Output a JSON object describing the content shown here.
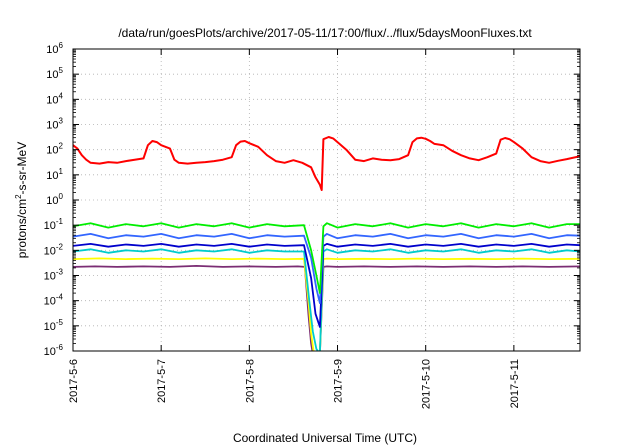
{
  "chart_data": {
    "type": "line",
    "title": "/data/run/goesPlots/archive/2017-05-11/17:00/flux/../flux/5daysMoonFluxes.txt",
    "xlabel": "Coordinated Universal Time (UTC)",
    "ylabel": {
      "base": "protons/cm",
      "sup": "2",
      "rest": "-s-sr-MeV"
    },
    "x_unit": "days since 2017-05-06 00:00 UTC",
    "xlim": [
      0,
      5.75
    ],
    "ylim": [
      1e-06,
      1000000.0
    ],
    "yscale": "log",
    "grid": true,
    "x_ticks": [
      {
        "value": 0,
        "label": "2017-5-6"
      },
      {
        "value": 1,
        "label": "2017-5-7"
      },
      {
        "value": 2,
        "label": "2017-5-8"
      },
      {
        "value": 3,
        "label": "2017-5-9"
      },
      {
        "value": 4,
        "label": "2017-5-10"
      },
      {
        "value": 5,
        "label": "2017-5-11"
      }
    ],
    "y_ticks": [
      {
        "exp": -6,
        "label": "10",
        "sup": "-6"
      },
      {
        "exp": -5,
        "label": "10",
        "sup": "-5"
      },
      {
        "exp": -4,
        "label": "10",
        "sup": "-4"
      },
      {
        "exp": -3,
        "label": "10",
        "sup": "-3"
      },
      {
        "exp": -2,
        "label": "10",
        "sup": "-2"
      },
      {
        "exp": -1,
        "label": "10",
        "sup": "-1"
      },
      {
        "exp": 0,
        "label": "10",
        "sup": "0"
      },
      {
        "exp": 1,
        "label": "10",
        "sup": "1"
      },
      {
        "exp": 2,
        "label": "10",
        "sup": "2"
      },
      {
        "exp": 3,
        "label": "10",
        "sup": "3"
      },
      {
        "exp": 4,
        "label": "10",
        "sup": "4"
      },
      {
        "exp": 5,
        "label": "10",
        "sup": "5"
      },
      {
        "exp": 6,
        "label": "10",
        "sup": "6"
      }
    ],
    "series": [
      {
        "color": "#7b2d74",
        "x": [
          0.0,
          0.25,
          0.5,
          0.8,
          1.1,
          1.4,
          1.7,
          2.0,
          2.3,
          2.55,
          2.63,
          2.67,
          2.7,
          2.72,
          2.74,
          2.78,
          2.8,
          2.84,
          2.88,
          3.0,
          3.3,
          3.6,
          3.9,
          4.2,
          4.5,
          4.8,
          5.1,
          5.4,
          5.75
        ],
        "y": [
          0.0022,
          0.0023,
          0.0022,
          0.0023,
          0.0022,
          0.0024,
          0.0022,
          0.0023,
          0.0022,
          0.0023,
          0.0022,
          3e-05,
          2e-06,
          8e-07,
          5e-07,
          5e-07,
          8e-07,
          0.0022,
          0.0023,
          0.0022,
          0.0023,
          0.0022,
          0.0023,
          0.0022,
          0.0023,
          0.0022,
          0.0023,
          0.0022,
          0.0023
        ]
      },
      {
        "color": "#ffff00",
        "x": [
          0.0,
          0.3,
          0.6,
          0.9,
          1.2,
          1.5,
          1.8,
          2.1,
          2.4,
          2.62,
          2.67,
          2.7,
          2.73,
          2.76,
          2.8,
          2.84,
          2.88,
          3.0,
          3.3,
          3.6,
          3.9,
          4.2,
          4.5,
          4.8,
          5.1,
          5.4,
          5.75
        ],
        "y": [
          0.0045,
          0.0048,
          0.0045,
          0.0047,
          0.0045,
          0.0048,
          0.0045,
          0.0047,
          0.0045,
          0.0046,
          0.0001,
          5e-06,
          9e-07,
          5e-07,
          8e-07,
          0.0045,
          0.0047,
          0.0045,
          0.0046,
          0.0045,
          0.0047,
          0.0045,
          0.0046,
          0.0045,
          0.0047,
          0.0045,
          0.0046
        ]
      },
      {
        "color": "#00cccc",
        "x": [
          0.0,
          0.2,
          0.4,
          0.6,
          0.8,
          1.0,
          1.2,
          1.4,
          1.6,
          1.8,
          2.0,
          2.2,
          2.4,
          2.62,
          2.68,
          2.72,
          2.76,
          2.8,
          2.84,
          2.88,
          3.0,
          3.2,
          3.4,
          3.6,
          3.8,
          4.0,
          4.2,
          4.4,
          4.6,
          4.8,
          5.0,
          5.2,
          5.4,
          5.6,
          5.75
        ],
        "y": [
          0.009,
          0.011,
          0.008,
          0.01,
          0.009,
          0.011,
          0.008,
          0.01,
          0.009,
          0.011,
          0.008,
          0.01,
          0.009,
          0.009,
          0.0001,
          6e-06,
          1.2e-06,
          8e-07,
          0.009,
          0.011,
          0.008,
          0.01,
          0.009,
          0.011,
          0.008,
          0.01,
          0.009,
          0.011,
          0.008,
          0.01,
          0.009,
          0.011,
          0.008,
          0.01,
          0.009
        ]
      },
      {
        "color": "#0000cc",
        "x": [
          0.0,
          0.2,
          0.4,
          0.6,
          0.8,
          1.0,
          1.2,
          1.4,
          1.6,
          1.8,
          2.0,
          2.2,
          2.4,
          2.62,
          2.7,
          2.75,
          2.8,
          2.84,
          2.88,
          3.0,
          3.2,
          3.4,
          3.6,
          3.8,
          4.0,
          4.2,
          4.4,
          4.6,
          4.8,
          5.0,
          5.2,
          5.4,
          5.6,
          5.75
        ],
        "y": [
          0.015,
          0.018,
          0.014,
          0.017,
          0.015,
          0.018,
          0.014,
          0.017,
          0.015,
          0.018,
          0.014,
          0.017,
          0.015,
          0.016,
          0.0008,
          3e-05,
          9e-06,
          0.015,
          0.018,
          0.014,
          0.017,
          0.015,
          0.018,
          0.014,
          0.017,
          0.015,
          0.018,
          0.014,
          0.017,
          0.015,
          0.018,
          0.014,
          0.017,
          0.016
        ]
      },
      {
        "color": "#3366ff",
        "x": [
          0.0,
          0.2,
          0.4,
          0.6,
          0.8,
          1.0,
          1.2,
          1.4,
          1.6,
          1.8,
          2.0,
          2.2,
          2.4,
          2.62,
          2.7,
          2.76,
          2.8,
          2.84,
          2.88,
          3.0,
          3.2,
          3.4,
          3.6,
          3.8,
          4.0,
          4.2,
          4.4,
          4.6,
          4.8,
          5.0,
          5.2,
          5.4,
          5.6,
          5.75
        ],
        "y": [
          0.035,
          0.045,
          0.03,
          0.04,
          0.035,
          0.045,
          0.03,
          0.04,
          0.035,
          0.045,
          0.03,
          0.04,
          0.035,
          0.038,
          0.005,
          0.0003,
          8e-05,
          0.035,
          0.045,
          0.03,
          0.04,
          0.035,
          0.045,
          0.03,
          0.04,
          0.035,
          0.045,
          0.03,
          0.04,
          0.035,
          0.045,
          0.03,
          0.04,
          0.038
        ]
      },
      {
        "color": "#00ee00",
        "x": [
          0.0,
          0.2,
          0.4,
          0.6,
          0.8,
          1.0,
          1.2,
          1.4,
          1.6,
          1.8,
          2.0,
          2.2,
          2.4,
          2.62,
          2.7,
          2.76,
          2.8,
          2.84,
          2.88,
          3.0,
          3.2,
          3.4,
          3.6,
          3.8,
          4.0,
          4.2,
          4.4,
          4.6,
          4.8,
          5.0,
          5.2,
          5.4,
          5.6,
          5.75
        ],
        "y": [
          0.09,
          0.12,
          0.08,
          0.11,
          0.09,
          0.12,
          0.08,
          0.11,
          0.09,
          0.12,
          0.08,
          0.11,
          0.09,
          0.1,
          0.01,
          0.001,
          0.0002,
          0.09,
          0.12,
          0.08,
          0.11,
          0.09,
          0.12,
          0.08,
          0.11,
          0.09,
          0.12,
          0.08,
          0.11,
          0.09,
          0.12,
          0.08,
          0.11,
          0.11
        ]
      },
      {
        "color": "#ff0000",
        "x": [
          0.0,
          0.05,
          0.1,
          0.15,
          0.2,
          0.3,
          0.4,
          0.5,
          0.6,
          0.7,
          0.8,
          0.85,
          0.9,
          0.95,
          1.0,
          1.1,
          1.15,
          1.2,
          1.3,
          1.4,
          1.5,
          1.6,
          1.7,
          1.8,
          1.85,
          1.9,
          1.95,
          2.0,
          2.1,
          2.2,
          2.3,
          2.4,
          2.5,
          2.6,
          2.7,
          2.75,
          2.8,
          2.82,
          2.84,
          2.9,
          2.95,
          3.0,
          3.1,
          3.2,
          3.3,
          3.4,
          3.5,
          3.6,
          3.7,
          3.8,
          3.85,
          3.9,
          3.95,
          4.0,
          4.05,
          4.1,
          4.2,
          4.3,
          4.4,
          4.5,
          4.6,
          4.7,
          4.8,
          4.85,
          4.9,
          4.95,
          5.0,
          5.1,
          5.2,
          5.3,
          5.4,
          5.5,
          5.6,
          5.75
        ],
        "y": [
          150,
          110,
          60,
          40,
          30,
          28,
          32,
          30,
          35,
          40,
          45,
          150,
          220,
          200,
          150,
          110,
          40,
          30,
          28,
          30,
          32,
          35,
          40,
          50,
          150,
          210,
          220,
          180,
          130,
          60,
          35,
          30,
          38,
          30,
          20,
          8,
          4,
          2.5,
          260,
          320,
          280,
          200,
          100,
          40,
          35,
          45,
          40,
          38,
          42,
          60,
          200,
          280,
          300,
          270,
          220,
          170,
          150,
          90,
          60,
          45,
          38,
          50,
          70,
          250,
          290,
          260,
          200,
          110,
          50,
          35,
          30,
          36,
          42,
          55
        ]
      }
    ]
  }
}
